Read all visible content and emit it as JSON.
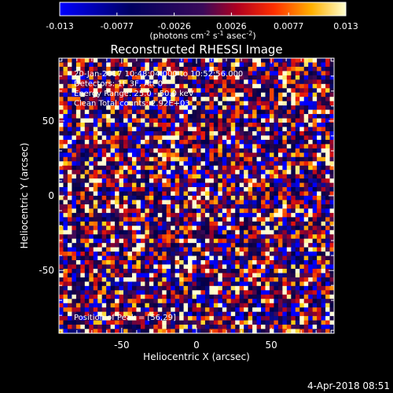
{
  "chart_data": {
    "type": "heatmap",
    "title": "Reconstructed RHESSI Image",
    "xlabel": "Heliocentric X (arcsec)",
    "ylabel": "Heliocentric Y (arcsec)",
    "xlim": [
      -92,
      92
    ],
    "ylim": [
      -92,
      92
    ],
    "xticks": [
      -50,
      0,
      50
    ],
    "yticks": [
      -50,
      0,
      50
    ],
    "colorbar": {
      "ticks": [
        "-0.013",
        "-0.0077",
        "-0.0026",
        "0.0026",
        "0.0077",
        "0.013"
      ],
      "range": [
        -0.013,
        0.013
      ],
      "unit_prefix": "(photons cm",
      "unit_exp1": "-2",
      "unit_mid1": " s",
      "unit_exp2": "-1",
      "unit_mid2": " asec",
      "unit_exp3": "-2",
      "unit_suffix": ")"
    },
    "annotations": [
      "20-Jan-2017 10:48:04.000 to 10:52:56.000",
      "Detectors: 1F 3F, Att 0",
      "Energy Range: 25.0 - 50.0 keV",
      "Clean    Total counts: 2.92E+03"
    ],
    "peak_label": "Position of Peak = [56,29]",
    "grid": false,
    "pixel_grid": [
      64,
      64
    ],
    "seed": 20170120
  },
  "footer": {
    "date": "4-Apr-2018 08:51"
  }
}
